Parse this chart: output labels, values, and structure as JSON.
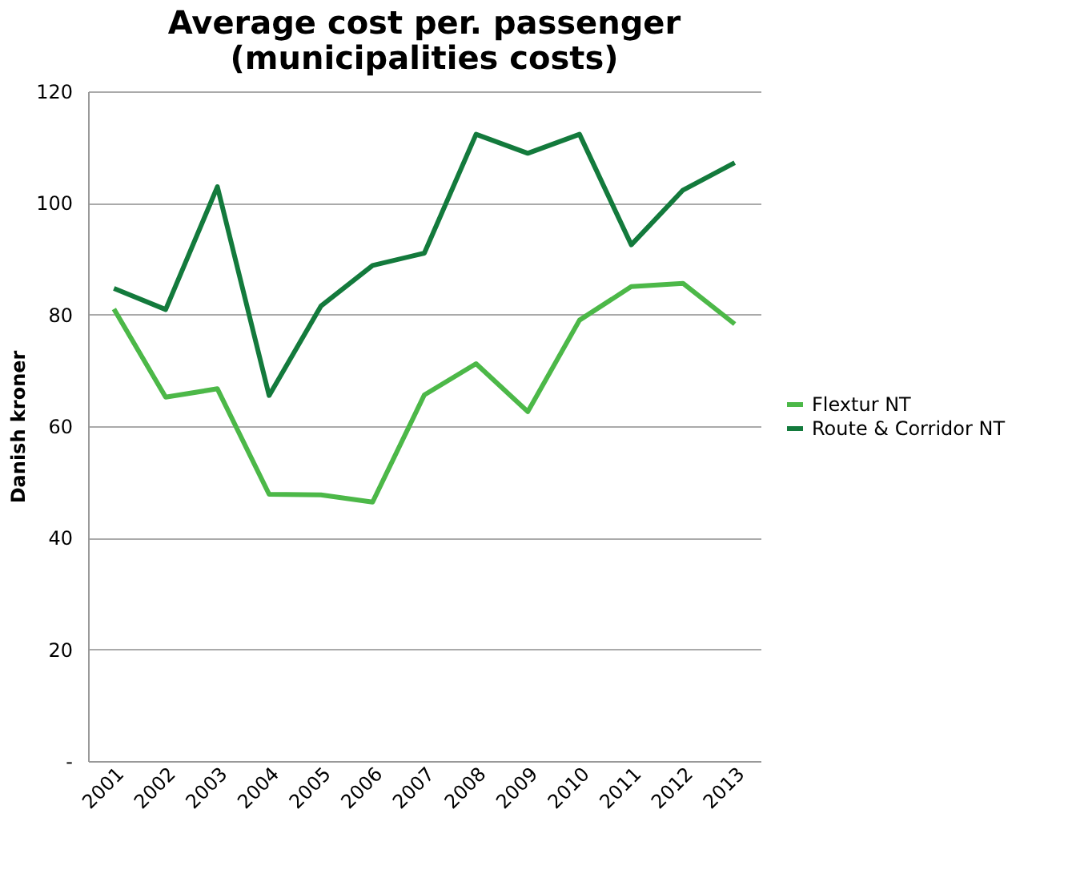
{
  "chart_data": {
    "type": "line",
    "title": "Average cost per. passenger\n(municipalities costs)",
    "ylabel": "Danish kroner",
    "categories": [
      "2001",
      "2002",
      "2003",
      "2004",
      "2005",
      "2006",
      "2007",
      "2008",
      "2009",
      "2010",
      "2011",
      "2012",
      "2013"
    ],
    "series": [
      {
        "name": "Flextur NT",
        "color": "#4cb848",
        "values": [
          81,
          65.2,
          66.7,
          47.8,
          47.7,
          46.4,
          65.6,
          71.2,
          62.6,
          79,
          85,
          85.6,
          78.3
        ]
      },
      {
        "name": "Route & Corridor NT",
        "color": "#137a3c",
        "values": [
          84.7,
          80.9,
          102.9,
          65.5,
          81.5,
          88.8,
          91,
          112.3,
          108.9,
          112.3,
          92.5,
          102.3,
          107.2
        ]
      }
    ],
    "ylim": [
      0,
      120
    ],
    "yticks": [
      {
        "value": 0,
        "label": "-"
      },
      20,
      40,
      60,
      80,
      100,
      120
    ],
    "grid": "y",
    "legend": "right",
    "line_style": "solid",
    "marker": "none"
  }
}
